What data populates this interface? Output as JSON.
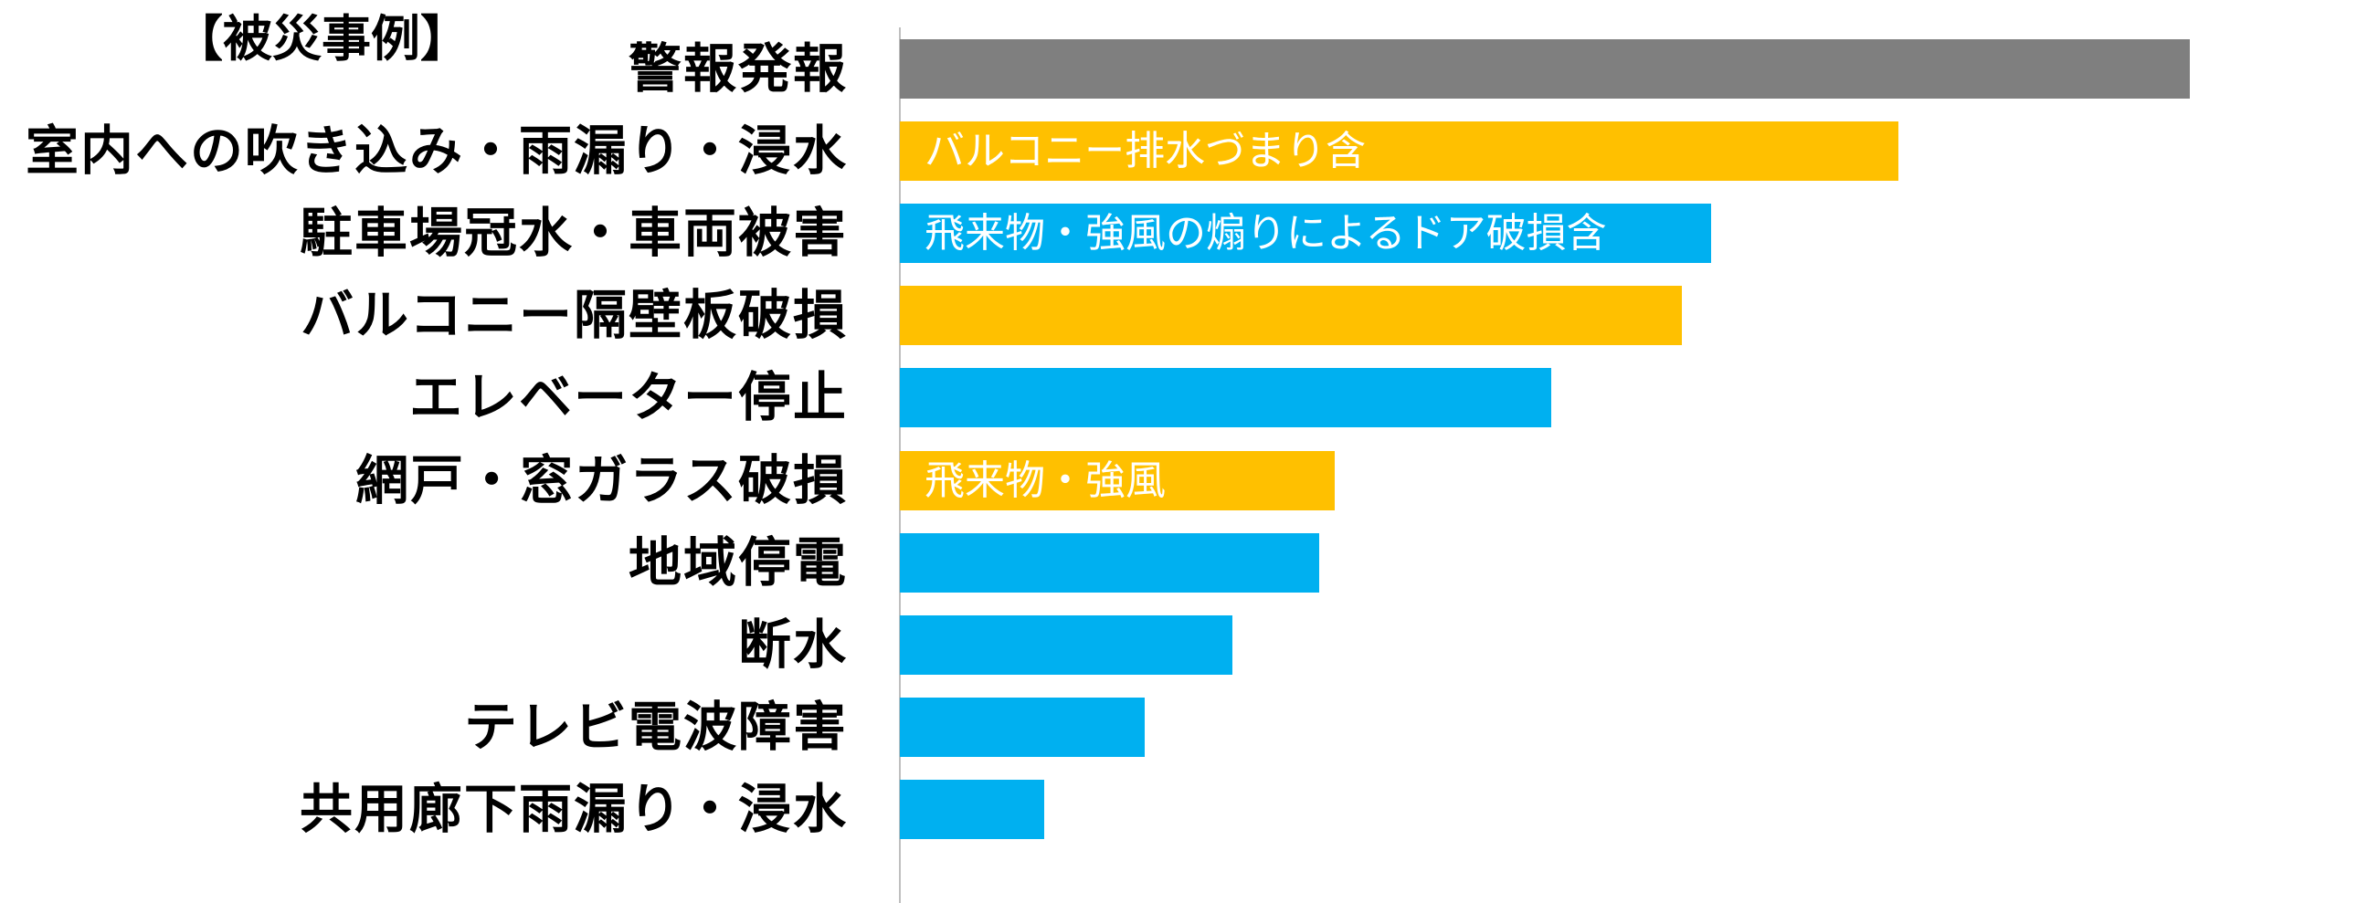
{
  "chart_data": {
    "type": "bar",
    "orientation": "horizontal",
    "title": "【被災事例】",
    "categories": [
      "警報発報",
      "室内への吹き込み・雨漏り・浸水",
      "駐車場冠水・車両被害",
      "バルコニー隔壁板破損",
      "エレベーター停止",
      "網戸・窓ガラス破損",
      "地域停電",
      "断水",
      "テレビ電波障害",
      "共用廊下雨漏り・浸水"
    ],
    "values": [
      100,
      77.4,
      62.9,
      60.6,
      50.5,
      33.7,
      32.5,
      25.8,
      19.0,
      11.2
    ],
    "colors": [
      "#7F7F7F",
      "#FFC000",
      "#00B0F0",
      "#FFC000",
      "#00B0F0",
      "#FFC000",
      "#00B0F0",
      "#00B0F0",
      "#00B0F0",
      "#00B0F0"
    ],
    "bar_labels": [
      "",
      "バルコニー排水づまり含",
      "飛来物・強風の煽りによるドア破損含",
      "",
      "",
      "飛来物・強風",
      "",
      "",
      "",
      ""
    ],
    "xlabel": "",
    "ylabel": "",
    "grid": false,
    "legend": "none"
  }
}
